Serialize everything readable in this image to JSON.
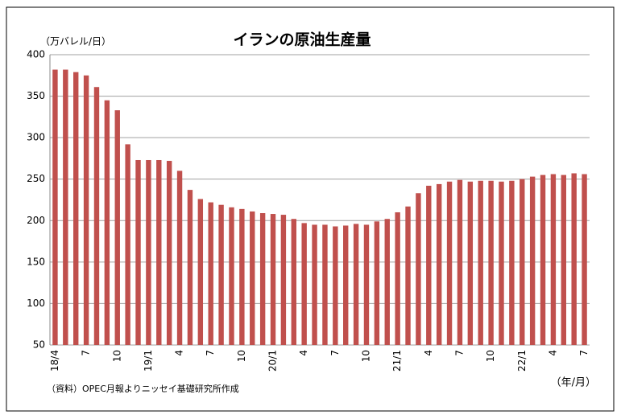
{
  "chart_data": {
    "type": "bar",
    "title": "イランの原油生産量",
    "y_label": "（万バレル/日）",
    "x_label": "（年/月）",
    "source": "（資料）OPEC月報よりニッセイ基礎研究所作成",
    "categories": [
      "18/4",
      null,
      null,
      "7",
      null,
      null,
      "10",
      null,
      null,
      "19/1",
      null,
      null,
      "4",
      null,
      null,
      "7",
      null,
      null,
      "10",
      null,
      null,
      "20/1",
      null,
      null,
      "4",
      null,
      null,
      "7",
      null,
      null,
      "10",
      null,
      null,
      "21/1",
      null,
      null,
      "4",
      null,
      null,
      "7",
      null,
      null,
      "10",
      null,
      null,
      "22/1",
      null,
      null,
      "4",
      null,
      null,
      "7"
    ],
    "values": [
      382,
      382,
      379,
      375,
      361,
      345,
      333,
      292,
      273,
      273,
      273,
      272,
      260,
      237,
      226,
      222,
      219,
      216,
      214,
      211,
      209,
      208,
      207,
      202,
      197,
      195,
      195,
      193,
      194,
      196,
      195,
      199,
      202,
      210,
      217,
      233,
      242,
      244,
      247,
      249,
      247,
      248,
      248,
      247,
      248,
      250,
      253,
      255,
      256,
      255,
      257,
      256
    ],
    "color": "#c0504d",
    "ylim": [
      50,
      400
    ],
    "yticks": [
      50,
      100,
      150,
      200,
      250,
      300,
      350,
      400
    ],
    "grid": true
  }
}
